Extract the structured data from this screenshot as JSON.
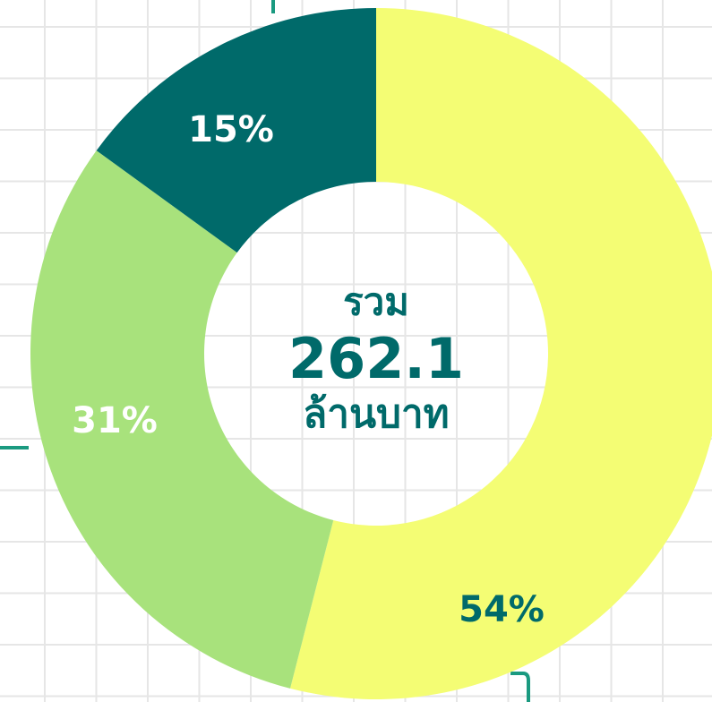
{
  "chart_data": {
    "type": "donut",
    "values": [
      54,
      31,
      15
    ],
    "value_labels": [
      "54%",
      "31%",
      "15%"
    ],
    "colors": [
      "#f4fd74",
      "#a8e27c",
      "#006a6a"
    ],
    "label_colors": [
      "#006a6a",
      "#ffffff",
      "#ffffff"
    ],
    "total_label": "รวม",
    "total": 262.1,
    "total_unit": "ล้านบาท"
  }
}
